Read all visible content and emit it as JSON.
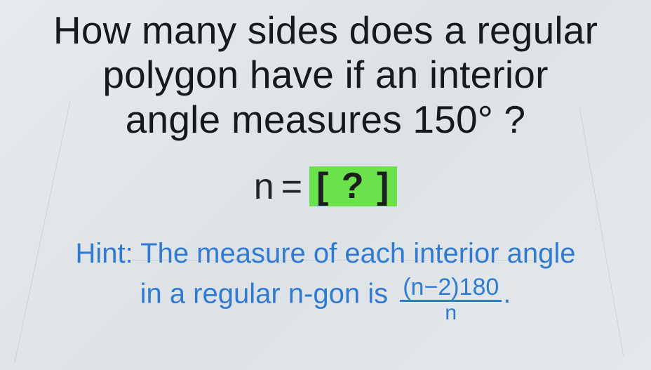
{
  "question": {
    "line1": "How many sides does a regular",
    "line2": "polygon have if an interior",
    "line3_prefix": "angle measures ",
    "angle_value": "150°",
    "line3_suffix": " ?",
    "text_color": "#17191b",
    "fontsize": 55
  },
  "answer": {
    "lhs": "n",
    "eq": "=",
    "box_text": "[ ? ]",
    "box_bg": "#6be24b",
    "fontsize": 52,
    "text_color": "#222528"
  },
  "hint": {
    "line1": "Hint: The measure of each interior angle",
    "line2_prefix": "in a regular n-gon is ",
    "frac_num": "(n−2)180",
    "frac_den": "n",
    "period": ".",
    "color": "#2f7bd4",
    "fontsize": 40
  },
  "background": {
    "gradient_from": "#e8ebee",
    "gradient_to": "#e5e9ec"
  }
}
